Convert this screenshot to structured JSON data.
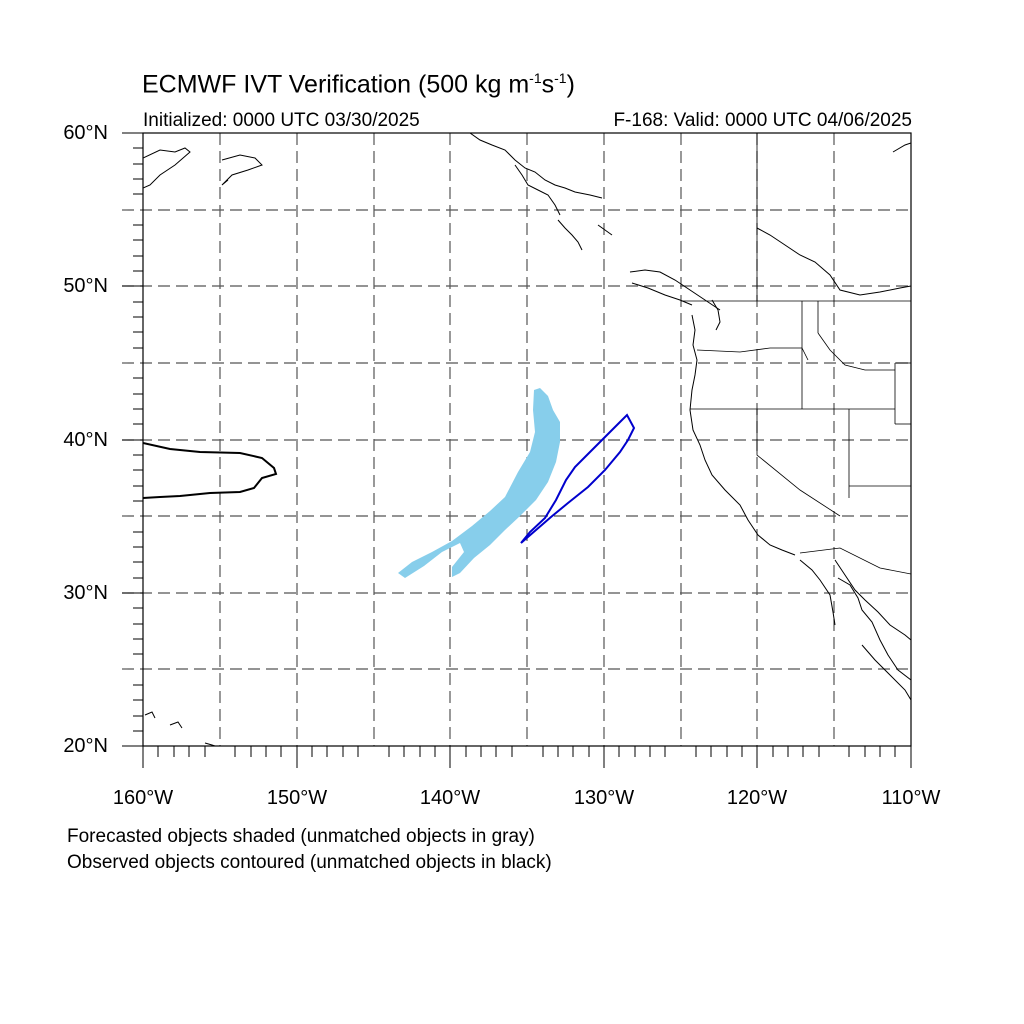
{
  "title": {
    "main": "ECMWF IVT Verification (500 kg m",
    "unit_exp1": "-1",
    "unit_s": "s",
    "unit_exp2": "-1",
    "close": ")"
  },
  "initialized": "Initialized: 0000 UTC 03/30/2025",
  "valid": "F-168: Valid: 0000 UTC 04/06/2025",
  "axes": {
    "lat_labels": [
      "60°N",
      "50°N",
      "40°N",
      "30°N",
      "20°N"
    ],
    "lon_labels": [
      "160°W",
      "150°W",
      "140°W",
      "130°W",
      "120°W",
      "110°W"
    ],
    "lat_range": [
      20,
      60
    ],
    "lon_range": [
      -160,
      -110
    ],
    "grid": true
  },
  "notes": {
    "forecast": "Forecasted objects shaded (unmatched objects in gray)",
    "observed": "Observed objects contoured (unmatched objects in black)"
  },
  "colors": {
    "forecast_fill": "#87CEEB",
    "observed_matched": "#0000CD",
    "observed_unmatched": "#000000",
    "coastline": "#000000",
    "grid": "#555555"
  }
}
